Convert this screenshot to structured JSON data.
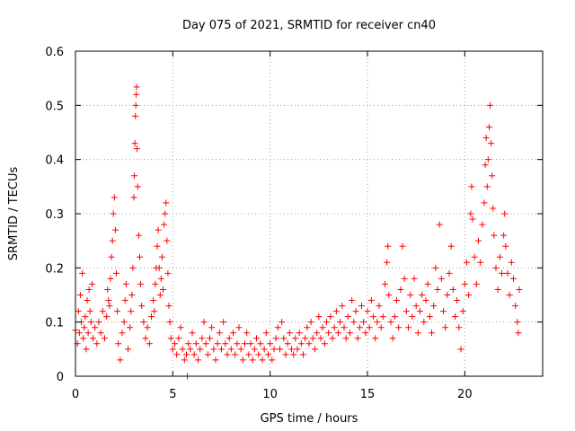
{
  "chart_data": {
    "type": "scatter",
    "title": "Day 075 of 2021, SRMTID for receiver cn40",
    "xlabel": "GPS time / hours",
    "ylabel": "SRMTID / TECUs",
    "xlim": [
      0,
      24
    ],
    "ylim": [
      0,
      0.6
    ],
    "xticks": [
      0,
      5,
      10,
      15,
      20
    ],
    "xtick_labels": [
      "0",
      "5",
      "10",
      "15",
      "20"
    ],
    "yticks": [
      0,
      0.1,
      0.2,
      0.3,
      0.4,
      0.5,
      0.6
    ],
    "ytick_labels": [
      "0",
      "0.1",
      "0.2",
      "0.3",
      "0.4",
      "0.5",
      "0.6"
    ],
    "grid": true,
    "marker": "plus",
    "color": "#ff0000",
    "series": [
      {
        "name": "SRMTID",
        "points": [
          [
            0.0,
            0.085
          ],
          [
            0.1,
            0.06
          ],
          [
            0.15,
            0.12
          ],
          [
            0.2,
            0.08
          ],
          [
            0.25,
            0.15
          ],
          [
            0.3,
            0.1
          ],
          [
            0.35,
            0.19
          ],
          [
            0.4,
            0.07
          ],
          [
            0.45,
            0.09
          ],
          [
            0.5,
            0.11
          ],
          [
            0.55,
            0.05
          ],
          [
            0.6,
            0.14
          ],
          [
            0.65,
            0.08
          ],
          [
            0.7,
            0.16
          ],
          [
            0.75,
            0.12
          ],
          [
            0.8,
            0.1
          ],
          [
            0.85,
            0.17
          ],
          [
            0.9,
            0.07
          ],
          [
            1.0,
            0.09
          ],
          [
            1.1,
            0.06
          ],
          [
            1.2,
            0.1
          ],
          [
            1.3,
            0.08
          ],
          [
            1.4,
            0.12
          ],
          [
            1.5,
            0.07
          ],
          [
            1.6,
            0.11
          ],
          [
            1.65,
            0.16
          ],
          [
            1.7,
            0.14
          ],
          [
            1.75,
            0.13
          ],
          [
            1.8,
            0.18
          ],
          [
            1.85,
            0.22
          ],
          [
            1.9,
            0.25
          ],
          [
            1.95,
            0.3
          ],
          [
            2.0,
            0.33
          ],
          [
            2.05,
            0.27
          ],
          [
            2.1,
            0.19
          ],
          [
            2.15,
            0.12
          ],
          [
            2.2,
            0.06
          ],
          [
            2.3,
            0.03
          ],
          [
            2.4,
            0.08
          ],
          [
            2.5,
            0.1
          ],
          [
            2.55,
            0.14
          ],
          [
            2.6,
            0.17
          ],
          [
            2.7,
            0.05
          ],
          [
            2.8,
            0.09
          ],
          [
            2.85,
            0.12
          ],
          [
            2.9,
            0.15
          ],
          [
            2.95,
            0.2
          ],
          [
            3.0,
            0.33
          ],
          [
            3.02,
            0.37
          ],
          [
            3.05,
            0.43
          ],
          [
            3.08,
            0.48
          ],
          [
            3.1,
            0.5
          ],
          [
            3.12,
            0.52
          ],
          [
            3.14,
            0.534
          ],
          [
            3.16,
            0.42
          ],
          [
            3.2,
            0.35
          ],
          [
            3.25,
            0.26
          ],
          [
            3.3,
            0.22
          ],
          [
            3.35,
            0.17
          ],
          [
            3.4,
            0.13
          ],
          [
            3.5,
            0.1
          ],
          [
            3.6,
            0.07
          ],
          [
            3.7,
            0.09
          ],
          [
            3.8,
            0.06
          ],
          [
            3.9,
            0.11
          ],
          [
            4.0,
            0.14
          ],
          [
            4.05,
            0.12
          ],
          [
            4.1,
            0.17
          ],
          [
            4.15,
            0.2
          ],
          [
            4.2,
            0.24
          ],
          [
            4.25,
            0.27
          ],
          [
            4.3,
            0.2
          ],
          [
            4.35,
            0.15
          ],
          [
            4.4,
            0.18
          ],
          [
            4.45,
            0.22
          ],
          [
            4.5,
            0.16
          ],
          [
            4.55,
            0.28
          ],
          [
            4.6,
            0.3
          ],
          [
            4.65,
            0.32
          ],
          [
            4.7,
            0.25
          ],
          [
            4.75,
            0.19
          ],
          [
            4.8,
            0.13
          ],
          [
            4.85,
            0.1
          ],
          [
            4.9,
            0.07
          ],
          [
            5.0,
            0.05
          ],
          [
            5.1,
            0.06
          ],
          [
            5.2,
            0.04
          ],
          [
            5.3,
            0.07
          ],
          [
            5.4,
            0.09
          ],
          [
            5.5,
            0.05
          ],
          [
            5.6,
            0.03
          ],
          [
            5.7,
            0.04
          ],
          [
            5.75,
            0.0
          ],
          [
            5.8,
            0.06
          ],
          [
            5.9,
            0.05
          ],
          [
            6.0,
            0.08
          ],
          [
            6.1,
            0.04
          ],
          [
            6.2,
            0.06
          ],
          [
            6.3,
            0.03
          ],
          [
            6.4,
            0.05
          ],
          [
            6.5,
            0.07
          ],
          [
            6.6,
            0.1
          ],
          [
            6.7,
            0.06
          ],
          [
            6.8,
            0.04
          ],
          [
            6.9,
            0.07
          ],
          [
            7.0,
            0.09
          ],
          [
            7.1,
            0.05
          ],
          [
            7.2,
            0.03
          ],
          [
            7.3,
            0.06
          ],
          [
            7.4,
            0.08
          ],
          [
            7.5,
            0.05
          ],
          [
            7.6,
            0.1
          ],
          [
            7.7,
            0.06
          ],
          [
            7.8,
            0.04
          ],
          [
            7.9,
            0.07
          ],
          [
            8.0,
            0.05
          ],
          [
            8.1,
            0.08
          ],
          [
            8.2,
            0.04
          ],
          [
            8.3,
            0.06
          ],
          [
            8.4,
            0.09
          ],
          [
            8.5,
            0.05
          ],
          [
            8.6,
            0.03
          ],
          [
            8.7,
            0.06
          ],
          [
            8.8,
            0.08
          ],
          [
            8.9,
            0.04
          ],
          [
            9.0,
            0.06
          ],
          [
            9.1,
            0.03
          ],
          [
            9.2,
            0.05
          ],
          [
            9.3,
            0.07
          ],
          [
            9.4,
            0.04
          ],
          [
            9.5,
            0.06
          ],
          [
            9.6,
            0.03
          ],
          [
            9.7,
            0.05
          ],
          [
            9.8,
            0.08
          ],
          [
            9.9,
            0.04
          ],
          [
            10.0,
            0.06
          ],
          [
            10.1,
            0.03
          ],
          [
            10.2,
            0.05
          ],
          [
            10.3,
            0.07
          ],
          [
            10.4,
            0.09
          ],
          [
            10.5,
            0.05
          ],
          [
            10.6,
            0.1
          ],
          [
            10.7,
            0.07
          ],
          [
            10.8,
            0.04
          ],
          [
            10.9,
            0.06
          ],
          [
            11.0,
            0.08
          ],
          [
            11.1,
            0.05
          ],
          [
            11.2,
            0.04
          ],
          [
            11.3,
            0.07
          ],
          [
            11.4,
            0.05
          ],
          [
            11.5,
            0.08
          ],
          [
            11.6,
            0.06
          ],
          [
            11.7,
            0.04
          ],
          [
            11.8,
            0.07
          ],
          [
            11.9,
            0.09
          ],
          [
            12.0,
            0.06
          ],
          [
            12.1,
            0.1
          ],
          [
            12.2,
            0.07
          ],
          [
            12.3,
            0.05
          ],
          [
            12.4,
            0.08
          ],
          [
            12.5,
            0.11
          ],
          [
            12.6,
            0.07
          ],
          [
            12.7,
            0.09
          ],
          [
            12.8,
            0.06
          ],
          [
            12.9,
            0.1
          ],
          [
            13.0,
            0.08
          ],
          [
            13.1,
            0.11
          ],
          [
            13.2,
            0.07
          ],
          [
            13.3,
            0.09
          ],
          [
            13.4,
            0.12
          ],
          [
            13.5,
            0.08
          ],
          [
            13.6,
            0.1
          ],
          [
            13.7,
            0.13
          ],
          [
            13.8,
            0.09
          ],
          [
            13.9,
            0.07
          ],
          [
            14.0,
            0.11
          ],
          [
            14.1,
            0.08
          ],
          [
            14.2,
            0.14
          ],
          [
            14.3,
            0.1
          ],
          [
            14.4,
            0.12
          ],
          [
            14.5,
            0.07
          ],
          [
            14.6,
            0.09
          ],
          [
            14.7,
            0.13
          ],
          [
            14.8,
            0.1
          ],
          [
            14.9,
            0.08
          ],
          [
            15.0,
            0.12
          ],
          [
            15.1,
            0.09
          ],
          [
            15.2,
            0.14
          ],
          [
            15.3,
            0.11
          ],
          [
            15.4,
            0.07
          ],
          [
            15.5,
            0.1
          ],
          [
            15.6,
            0.13
          ],
          [
            15.7,
            0.09
          ],
          [
            15.8,
            0.11
          ],
          [
            15.9,
            0.17
          ],
          [
            16.0,
            0.21
          ],
          [
            16.05,
            0.24
          ],
          [
            16.1,
            0.15
          ],
          [
            16.2,
            0.1
          ],
          [
            16.3,
            0.07
          ],
          [
            16.4,
            0.11
          ],
          [
            16.5,
            0.14
          ],
          [
            16.6,
            0.09
          ],
          [
            16.7,
            0.16
          ],
          [
            16.8,
            0.24
          ],
          [
            16.9,
            0.18
          ],
          [
            17.0,
            0.12
          ],
          [
            17.1,
            0.09
          ],
          [
            17.2,
            0.15
          ],
          [
            17.3,
            0.11
          ],
          [
            17.4,
            0.18
          ],
          [
            17.5,
            0.13
          ],
          [
            17.6,
            0.08
          ],
          [
            17.7,
            0.12
          ],
          [
            17.8,
            0.15
          ],
          [
            17.9,
            0.1
          ],
          [
            18.0,
            0.14
          ],
          [
            18.1,
            0.17
          ],
          [
            18.2,
            0.11
          ],
          [
            18.3,
            0.08
          ],
          [
            18.4,
            0.13
          ],
          [
            18.5,
            0.2
          ],
          [
            18.6,
            0.16
          ],
          [
            18.7,
            0.28
          ],
          [
            18.8,
            0.18
          ],
          [
            18.9,
            0.12
          ],
          [
            19.0,
            0.09
          ],
          [
            19.1,
            0.15
          ],
          [
            19.2,
            0.19
          ],
          [
            19.3,
            0.24
          ],
          [
            19.4,
            0.16
          ],
          [
            19.5,
            0.11
          ],
          [
            19.6,
            0.14
          ],
          [
            19.7,
            0.09
          ],
          [
            19.8,
            0.05
          ],
          [
            19.9,
            0.12
          ],
          [
            20.0,
            0.17
          ],
          [
            20.1,
            0.21
          ],
          [
            20.2,
            0.15
          ],
          [
            20.3,
            0.3
          ],
          [
            20.35,
            0.35
          ],
          [
            20.4,
            0.29
          ],
          [
            20.5,
            0.22
          ],
          [
            20.6,
            0.17
          ],
          [
            20.7,
            0.25
          ],
          [
            20.8,
            0.21
          ],
          [
            20.9,
            0.28
          ],
          [
            21.0,
            0.32
          ],
          [
            21.05,
            0.39
          ],
          [
            21.1,
            0.44
          ],
          [
            21.15,
            0.35
          ],
          [
            21.2,
            0.4
          ],
          [
            21.25,
            0.46
          ],
          [
            21.3,
            0.5
          ],
          [
            21.35,
            0.43
          ],
          [
            21.4,
            0.37
          ],
          [
            21.45,
            0.31
          ],
          [
            21.5,
            0.26
          ],
          [
            21.6,
            0.2
          ],
          [
            21.7,
            0.16
          ],
          [
            21.8,
            0.22
          ],
          [
            21.9,
            0.19
          ],
          [
            22.0,
            0.26
          ],
          [
            22.05,
            0.3
          ],
          [
            22.1,
            0.24
          ],
          [
            22.2,
            0.19
          ],
          [
            22.3,
            0.15
          ],
          [
            22.4,
            0.21
          ],
          [
            22.5,
            0.18
          ],
          [
            22.6,
            0.13
          ],
          [
            22.7,
            0.1
          ],
          [
            22.75,
            0.08
          ],
          [
            22.8,
            0.16
          ]
        ]
      }
    ]
  }
}
